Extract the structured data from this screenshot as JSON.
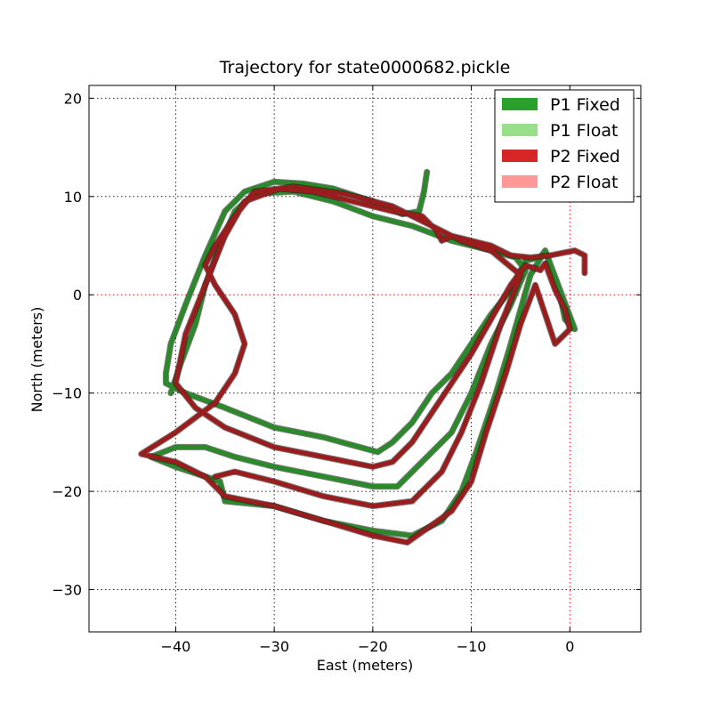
{
  "chart_data": {
    "type": "line",
    "title": "Trajectory for state0000682.pickle",
    "xlabel": "East (meters)",
    "ylabel": "North (meters)",
    "xlim": [
      -48.8,
      7.2
    ],
    "ylim": [
      -34.3,
      21.3
    ],
    "xticks": [
      -40,
      -30,
      -20,
      -10,
      0
    ],
    "yticks": [
      -30,
      -20,
      -10,
      0,
      10,
      20
    ],
    "xtick_labels": [
      "−40",
      "−30",
      "−20",
      "−10",
      "0"
    ],
    "ytick_labels": [
      "−30",
      "−20",
      "−10",
      "0",
      "10",
      "20"
    ],
    "grid": true,
    "zero_lines": {
      "x": 0,
      "y": 0,
      "color": "#ff0000"
    },
    "legend": {
      "position": "top-right",
      "entries": [
        {
          "label": "P1 Fixed",
          "color": "#2ca02c"
        },
        {
          "label": "P1 Float",
          "color": "#98df8a"
        },
        {
          "label": "P2 Fixed",
          "color": "#d62728"
        },
        {
          "label": "P2 Float",
          "color": "#ff9896"
        }
      ]
    },
    "series": [
      {
        "name": "P1 Fixed",
        "color": "#2a8a2a",
        "points": [
          [
            -14.5,
            12.5
          ],
          [
            -14.8,
            10.5
          ],
          [
            -15.3,
            8.5
          ],
          [
            -17,
            8.2
          ],
          [
            -20,
            9.5
          ],
          [
            -24,
            10.8
          ],
          [
            -27,
            11.3
          ],
          [
            -30,
            11.5
          ],
          [
            -33,
            10.5
          ],
          [
            -35,
            8.5
          ],
          [
            -37,
            4
          ],
          [
            -39,
            -1
          ],
          [
            -40.5,
            -5
          ],
          [
            -41,
            -8
          ],
          [
            -41,
            -9
          ],
          [
            -39,
            -10
          ],
          [
            -35,
            -11.5
          ],
          [
            -30,
            -13.5
          ],
          [
            -25,
            -14.5
          ],
          [
            -19.5,
            -16
          ],
          [
            -18,
            -15
          ],
          [
            -16,
            -13
          ],
          [
            -14,
            -10
          ],
          [
            -12,
            -8
          ],
          [
            -10,
            -5
          ],
          [
            -8,
            -2
          ],
          [
            -6,
            0.5
          ],
          [
            -5,
            2.5
          ],
          [
            -4.5,
            3.5
          ],
          [
            -3,
            3.8
          ],
          [
            -2.5,
            4.5
          ],
          [
            -1,
            0
          ],
          [
            -0.5,
            -2.5
          ],
          [
            0.5,
            -3.5
          ],
          [
            -2.5,
            4.5
          ],
          [
            -4,
            2
          ],
          [
            -6,
            -5
          ],
          [
            -7.5,
            -10
          ],
          [
            -9.5,
            -16
          ],
          [
            -11,
            -20
          ],
          [
            -13,
            -23
          ],
          [
            -16,
            -24.5
          ],
          [
            -20,
            -24
          ],
          [
            -25,
            -23
          ],
          [
            -30,
            -21.5
          ],
          [
            -35,
            -21
          ],
          [
            -35.5,
            -19
          ],
          [
            -40,
            -17.5
          ],
          [
            -42.5,
            -16.5
          ],
          [
            -40,
            -15.5
          ],
          [
            -37,
            -15.5
          ],
          [
            -34,
            -16.5
          ],
          [
            -30,
            -17.5
          ],
          [
            -25,
            -18.5
          ],
          [
            -20,
            -19.5
          ],
          [
            -17.5,
            -19.5
          ],
          [
            -15,
            -17
          ],
          [
            -12,
            -14
          ],
          [
            -10,
            -10
          ],
          [
            -8,
            -5
          ],
          [
            -6,
            -1
          ],
          [
            -4.5,
            2.5
          ],
          [
            -5.5,
            3.8
          ],
          [
            -8,
            4.5
          ],
          [
            -12,
            5.5
          ],
          [
            -16,
            7
          ],
          [
            -20,
            8
          ],
          [
            -24,
            9.5
          ],
          [
            -28,
            10.5
          ],
          [
            -32,
            10.3
          ],
          [
            -34,
            8.5
          ],
          [
            -35.5,
            5
          ],
          [
            -37,
            1
          ],
          [
            -38,
            -3
          ],
          [
            -39.5,
            -7
          ],
          [
            -40.5,
            -10
          ]
        ]
      },
      {
        "name": "P2 Fixed",
        "color": "#9b1c1c",
        "points": [
          [
            1.5,
            2.2
          ],
          [
            1.5,
            4
          ],
          [
            0.5,
            4.5
          ],
          [
            -2,
            4
          ],
          [
            -4,
            3.8
          ],
          [
            -6,
            4
          ],
          [
            -8,
            5
          ],
          [
            -10,
            5.5
          ],
          [
            -12,
            6
          ],
          [
            -13,
            5.5
          ],
          [
            -13.5,
            6.5
          ],
          [
            -15,
            8
          ],
          [
            -18,
            8.5
          ],
          [
            -22,
            9.5
          ],
          [
            -26,
            10.5
          ],
          [
            -29.5,
            10.8
          ],
          [
            -33,
            9.5
          ],
          [
            -35,
            6
          ],
          [
            -37,
            1
          ],
          [
            -39,
            -4
          ],
          [
            -40,
            -9
          ],
          [
            -38,
            -11.5
          ],
          [
            -35,
            -13.5
          ],
          [
            -30,
            -15.5
          ],
          [
            -25,
            -16.5
          ],
          [
            -20,
            -17.5
          ],
          [
            -18,
            -17
          ],
          [
            -16,
            -15
          ],
          [
            -14,
            -12
          ],
          [
            -12,
            -9
          ],
          [
            -10,
            -6
          ],
          [
            -8,
            -2.5
          ],
          [
            -6,
            1
          ],
          [
            -4.5,
            3
          ],
          [
            -3,
            2.5
          ],
          [
            -2.5,
            3.2
          ],
          [
            -1.5,
            0.5
          ],
          [
            -0.5,
            -1.5
          ],
          [
            0,
            -3.5
          ],
          [
            -1.5,
            -5
          ],
          [
            -3.5,
            1
          ],
          [
            -5,
            -3
          ],
          [
            -6.5,
            -8
          ],
          [
            -8.5,
            -14
          ],
          [
            -10,
            -19
          ],
          [
            -12,
            -22
          ],
          [
            -16.5,
            -25.2
          ],
          [
            -20,
            -24.5
          ],
          [
            -25,
            -23
          ],
          [
            -30,
            -21.5
          ],
          [
            -35,
            -20.5
          ],
          [
            -37,
            -18.5
          ],
          [
            -40,
            -17
          ],
          [
            -43.5,
            -16.2
          ],
          [
            -40,
            -14
          ],
          [
            -36,
            -11
          ],
          [
            -34,
            -8
          ],
          [
            -33,
            -5
          ],
          [
            -34,
            -2
          ],
          [
            -36,
            1
          ],
          [
            -37,
            3
          ],
          [
            -36,
            5
          ],
          [
            -34,
            8
          ],
          [
            -32,
            10.5
          ],
          [
            -28,
            11
          ],
          [
            -23,
            10.3
          ],
          [
            -18,
            9
          ],
          [
            -14,
            7
          ],
          [
            -11,
            5.5
          ],
          [
            -8,
            4.5
          ],
          [
            -5,
            2
          ],
          [
            -7,
            -3
          ],
          [
            -9,
            -9
          ],
          [
            -11,
            -14
          ],
          [
            -13,
            -18
          ],
          [
            -16,
            -21
          ],
          [
            -20,
            -21.5
          ],
          [
            -25,
            -20.5
          ],
          [
            -30,
            -19
          ],
          [
            -34,
            -18
          ],
          [
            -36,
            -18.5
          ]
        ]
      }
    ]
  }
}
